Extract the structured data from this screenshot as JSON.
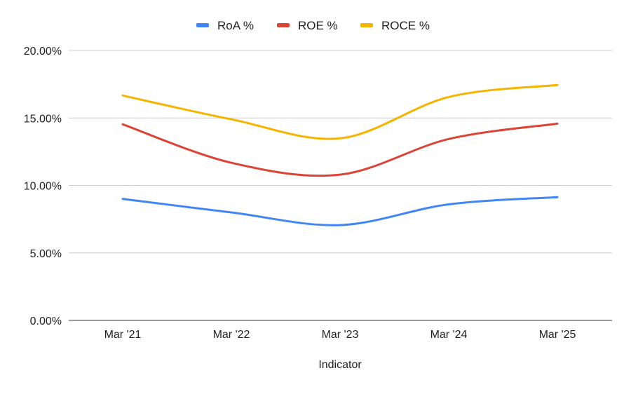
{
  "chart_data": {
    "type": "line",
    "smooth": true,
    "title": "",
    "xlabel": "Indicator",
    "ylabel": "",
    "categories": [
      "Mar '21",
      "Mar '22",
      "Mar '23",
      "Mar '24",
      "Mar '25"
    ],
    "ylim": [
      0,
      20
    ],
    "yticks": [
      0,
      5,
      10,
      15,
      20
    ],
    "ytick_labels": [
      "0.00%",
      "5.00%",
      "10.00%",
      "15.00%",
      "20.00%"
    ],
    "grid": true,
    "legend_position": "top",
    "series": [
      {
        "name": "RoA  %",
        "color": "#4285f4",
        "values": [
          9.0,
          8.0,
          7.06,
          8.6,
          9.13
        ]
      },
      {
        "name": "ROE  %",
        "color": "#db4437",
        "values": [
          14.53,
          11.68,
          10.8,
          13.44,
          14.58
        ]
      },
      {
        "name": "ROCE  %",
        "color": "#f4b400",
        "values": [
          16.66,
          14.9,
          13.49,
          16.55,
          17.44
        ]
      }
    ]
  }
}
